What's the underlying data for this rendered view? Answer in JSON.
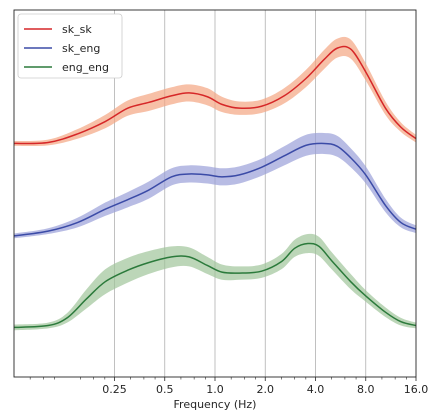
{
  "chart_data": {
    "type": "line",
    "xlabel": "Frequency (Hz)",
    "ylabel": "",
    "x_scale": "log2",
    "xlim": [
      0.0625,
      16.0
    ],
    "ylim": [
      0,
      3.85
    ],
    "grid": "vertical",
    "legend": "top-left",
    "x_ticks": [
      {
        "value": 0.25,
        "label": "0.25"
      },
      {
        "value": 0.5,
        "label": "0.5"
      },
      {
        "value": 1.0,
        "label": "1.0"
      },
      {
        "value": 2.0,
        "label": "2.0"
      },
      {
        "value": 4.0,
        "label": "4.0"
      },
      {
        "value": 8.0,
        "label": "8.0"
      },
      {
        "value": 16.0,
        "label": "16.0"
      }
    ],
    "y_ticks_shown": false,
    "series": [
      {
        "name": "sk_sk",
        "color": "#d62728",
        "band_color": "#f4a582",
        "x": [
          0.0625,
          0.1,
          0.15,
          0.22,
          0.3,
          0.4,
          0.55,
          0.7,
          0.9,
          1.1,
          1.4,
          1.9,
          2.6,
          3.5,
          4.5,
          5.4,
          6.5,
          8.0,
          10.5,
          13.0,
          16.0
        ],
        "y": [
          2.45,
          2.46,
          2.55,
          2.68,
          2.82,
          2.88,
          2.95,
          2.98,
          2.94,
          2.86,
          2.82,
          2.84,
          2.95,
          3.13,
          3.33,
          3.45,
          3.44,
          3.2,
          2.82,
          2.62,
          2.5
        ],
        "band_halfwidth": [
          0.025,
          0.03,
          0.05,
          0.07,
          0.08,
          0.09,
          0.09,
          0.09,
          0.09,
          0.08,
          0.07,
          0.07,
          0.08,
          0.09,
          0.1,
          0.1,
          0.1,
          0.09,
          0.07,
          0.05,
          0.04
        ]
      },
      {
        "name": "sk_eng",
        "color": "#3b4ba7",
        "band_color": "#9aa0d8",
        "x": [
          0.0625,
          0.1,
          0.15,
          0.22,
          0.3,
          0.4,
          0.55,
          0.7,
          0.9,
          1.1,
          1.4,
          1.9,
          2.6,
          3.5,
          4.5,
          5.4,
          6.5,
          8.0,
          10.5,
          13.0,
          16.0
        ],
        "y": [
          1.48,
          1.53,
          1.62,
          1.76,
          1.86,
          1.96,
          2.1,
          2.13,
          2.12,
          2.1,
          2.12,
          2.2,
          2.32,
          2.43,
          2.45,
          2.42,
          2.3,
          2.12,
          1.8,
          1.62,
          1.55
        ],
        "band_halfwidth": [
          0.025,
          0.03,
          0.05,
          0.07,
          0.08,
          0.09,
          0.09,
          0.09,
          0.09,
          0.09,
          0.09,
          0.09,
          0.1,
          0.11,
          0.11,
          0.11,
          0.1,
          0.09,
          0.07,
          0.05,
          0.04
        ]
      },
      {
        "name": "eng_eng",
        "color": "#2b7a3b",
        "band_color": "#9fc49a",
        "x": [
          0.0625,
          0.1,
          0.13,
          0.17,
          0.22,
          0.3,
          0.4,
          0.55,
          0.7,
          0.9,
          1.1,
          1.4,
          1.9,
          2.5,
          3.0,
          3.6,
          4.2,
          5.0,
          6.5,
          8.0,
          10.5,
          13.0,
          16.0
        ],
        "y": [
          0.52,
          0.54,
          0.62,
          0.82,
          1.0,
          1.12,
          1.2,
          1.26,
          1.26,
          1.17,
          1.1,
          1.09,
          1.11,
          1.21,
          1.35,
          1.4,
          1.37,
          1.22,
          1.0,
          0.85,
          0.68,
          0.58,
          0.54
        ],
        "band_halfwidth": [
          0.03,
          0.03,
          0.05,
          0.1,
          0.13,
          0.13,
          0.12,
          0.11,
          0.1,
          0.09,
          0.08,
          0.07,
          0.07,
          0.08,
          0.09,
          0.1,
          0.1,
          0.09,
          0.08,
          0.06,
          0.05,
          0.04,
          0.03
        ]
      }
    ]
  }
}
